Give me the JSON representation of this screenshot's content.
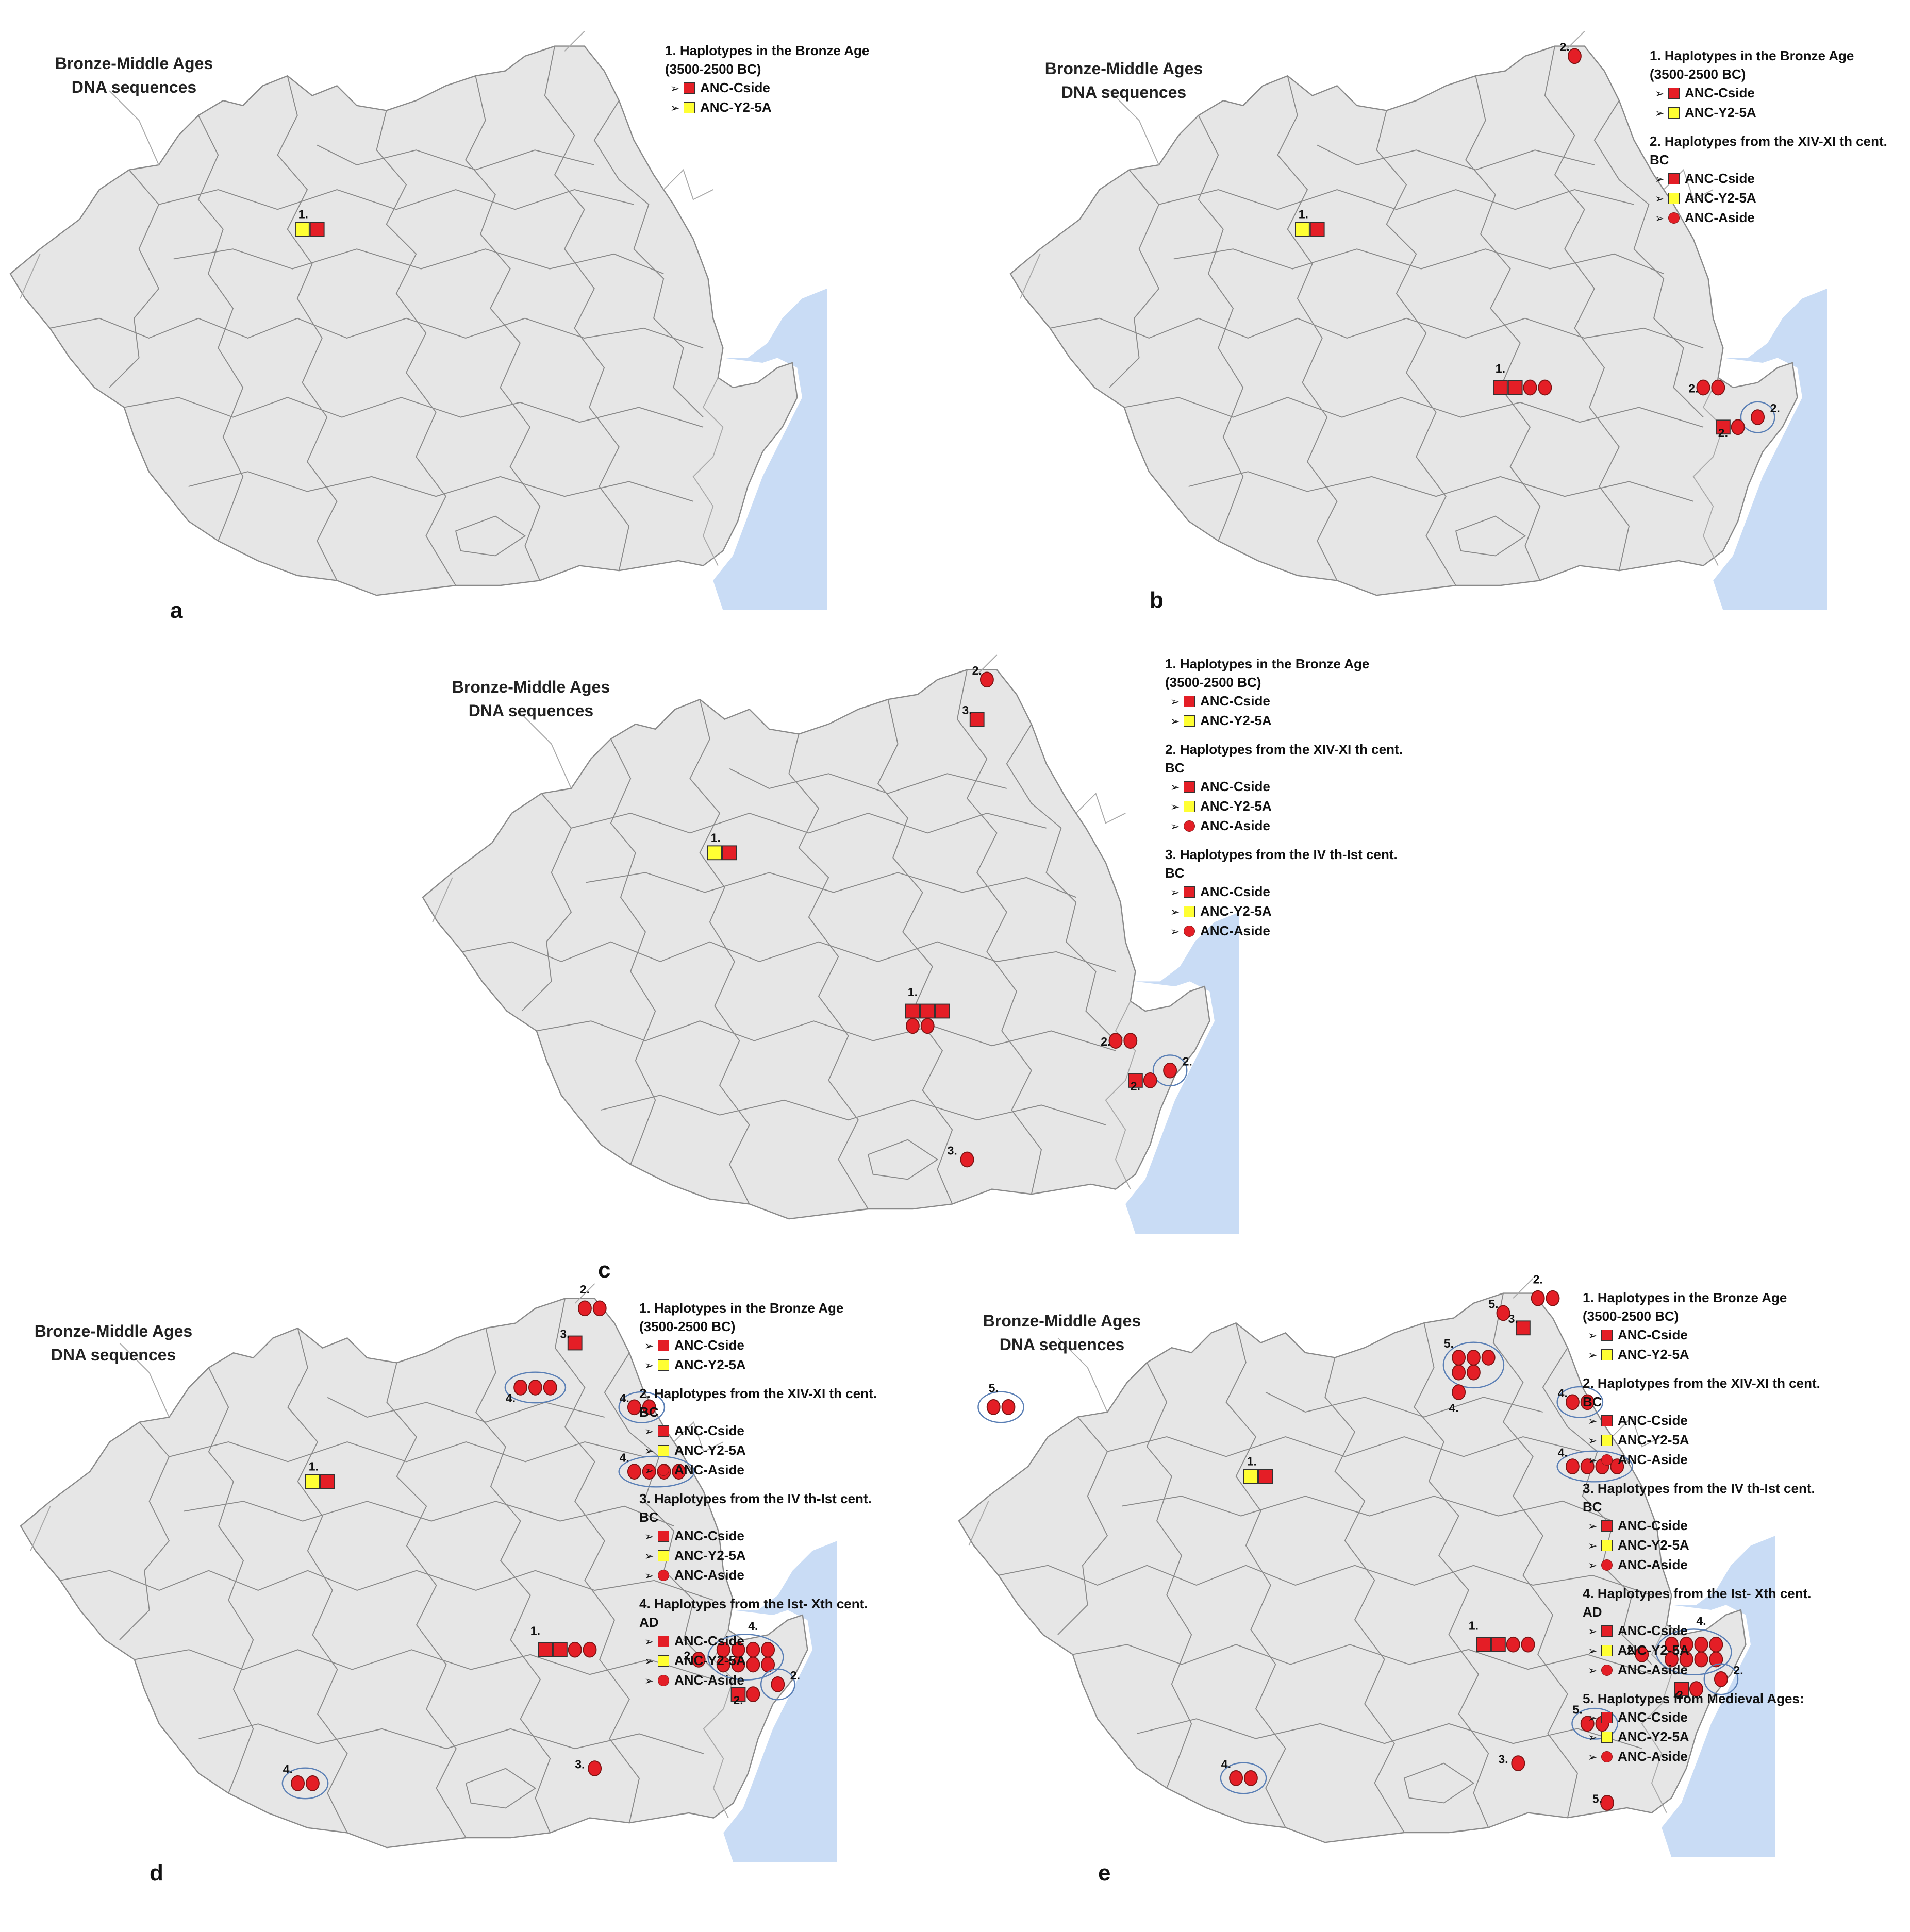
{
  "figure": {
    "colors": {
      "land": "#e6e6e6",
      "border": "#8a8a8a",
      "sea": "#c9dcf5",
      "csideSquare": "#e41e26",
      "y2Square": "#ffff33",
      "asideCircle": "#e41e26",
      "groupEllipse": "#5a7fb5"
    },
    "legendLabels": {
      "s1": "1. Haplotypes in the Bronze Age (3500-2500 BC)",
      "s2": "2. Haplotypes from the XIV-XI th cent. BC",
      "s3": "3. Haplotypes from the IV th-Ist cent. BC",
      "s4": "4. Haplotypes from the Ist- Xth cent. AD",
      "s5": "5. Haplotypes from Medieval Ages:",
      "cside": "ANC-Cside",
      "y2": "ANC-Y2-5A",
      "aside": "ANC-Aside"
    },
    "panels": [
      {
        "letter": "a",
        "title": "Bronze-Middle Ages DNA sequences",
        "legend": [
          {
            "heading": "1. Haplotypes in the Bronze Age (3500-2500 BC)",
            "items": [
              {
                "shape": "square",
                "color": "#e41e26",
                "label": "ANC-Cside"
              },
              {
                "shape": "square",
                "color": "#ffff33",
                "label": "ANC-Y2-5A"
              }
            ]
          }
        ],
        "sites": [
          {
            "label": "1."
          }
        ]
      },
      {
        "letter": "b",
        "title": "Bronze-Middle Ages DNA sequences",
        "legend": [
          {
            "heading": "1. Haplotypes in the Bronze Age (3500-2500 BC)",
            "items": [
              {
                "shape": "square",
                "color": "#e41e26",
                "label": "ANC-Cside"
              },
              {
                "shape": "square",
                "color": "#ffff33",
                "label": "ANC-Y2-5A"
              }
            ]
          },
          {
            "heading": "2. Haplotypes from the XIV-XI th cent. BC",
            "items": [
              {
                "shape": "square",
                "color": "#e41e26",
                "label": "ANC-Cside"
              },
              {
                "shape": "square",
                "color": "#ffff33",
                "label": "ANC-Y2-5A"
              },
              {
                "shape": "circle",
                "color": "#e41e26",
                "label": "ANC-Aside"
              }
            ]
          }
        ],
        "sites": [
          {
            "label": "1."
          },
          {
            "label": "1."
          },
          {
            "label": "2."
          },
          {
            "label": "2."
          },
          {
            "label": "2."
          },
          {
            "label": "2."
          }
        ]
      },
      {
        "letter": "c",
        "title": "Bronze-Middle Ages DNA sequences",
        "legend": [
          {
            "heading": "1. Haplotypes in the Bronze Age (3500-2500 BC)",
            "items": [
              {
                "shape": "square",
                "color": "#e41e26",
                "label": "ANC-Cside"
              },
              {
                "shape": "square",
                "color": "#ffff33",
                "label": "ANC-Y2-5A"
              }
            ]
          },
          {
            "heading": "2. Haplotypes from the XIV-XI th cent. BC",
            "items": [
              {
                "shape": "square",
                "color": "#e41e26",
                "label": "ANC-Cside"
              },
              {
                "shape": "square",
                "color": "#ffff33",
                "label": "ANC-Y2-5A"
              },
              {
                "shape": "circle",
                "color": "#e41e26",
                "label": "ANC-Aside"
              }
            ]
          },
          {
            "heading": "3. Haplotypes from the IV th-Ist cent. BC",
            "items": [
              {
                "shape": "square",
                "color": "#e41e26",
                "label": "ANC-Cside"
              },
              {
                "shape": "square",
                "color": "#ffff33",
                "label": "ANC-Y2-5A"
              },
              {
                "shape": "circle",
                "color": "#e41e26",
                "label": "ANC-Aside"
              }
            ]
          }
        ],
        "sites": [
          {
            "label": "1."
          },
          {
            "label": "1."
          },
          {
            "label": "2."
          },
          {
            "label": "2."
          },
          {
            "label": "2."
          },
          {
            "label": "2."
          },
          {
            "label": "3."
          },
          {
            "label": "3."
          }
        ]
      },
      {
        "letter": "d",
        "title": "Bronze-Middle Ages DNA sequences",
        "legend": [
          {
            "heading": "1. Haplotypes in the Bronze Age (3500-2500 BC)",
            "items": [
              {
                "shape": "square",
                "color": "#e41e26",
                "label": "ANC-Cside"
              },
              {
                "shape": "square",
                "color": "#ffff33",
                "label": "ANC-Y2-5A"
              }
            ]
          },
          {
            "heading": "2. Haplotypes from the XIV-XI th cent. BC",
            "items": [
              {
                "shape": "square",
                "color": "#e41e26",
                "label": "ANC-Cside"
              },
              {
                "shape": "square",
                "color": "#ffff33",
                "label": "ANC-Y2-5A"
              },
              {
                "shape": "circle",
                "color": "#e41e26",
                "label": "ANC-Aside"
              }
            ]
          },
          {
            "heading": "3. Haplotypes from the IV th-Ist cent. BC",
            "items": [
              {
                "shape": "square",
                "color": "#e41e26",
                "label": "ANC-Cside"
              },
              {
                "shape": "square",
                "color": "#ffff33",
                "label": "ANC-Y2-5A"
              },
              {
                "shape": "circle",
                "color": "#e41e26",
                "label": "ANC-Aside"
              }
            ]
          },
          {
            "heading": "4. Haplotypes from the Ist- Xth cent. AD",
            "items": [
              {
                "shape": "square",
                "color": "#e41e26",
                "label": "ANC-Cside"
              },
              {
                "shape": "square",
                "color": "#ffff33",
                "label": "ANC-Y2-5A"
              },
              {
                "shape": "circle",
                "color": "#e41e26",
                "label": "ANC-Aside"
              }
            ]
          }
        ],
        "sites": [
          {
            "label": "1."
          },
          {
            "label": "1."
          },
          {
            "label": "2."
          },
          {
            "label": "2."
          },
          {
            "label": "2."
          },
          {
            "label": "2."
          },
          {
            "label": "3."
          },
          {
            "label": "3."
          },
          {
            "label": "4."
          },
          {
            "label": "4."
          },
          {
            "label": "4."
          },
          {
            "label": "4."
          },
          {
            "label": "4."
          }
        ]
      },
      {
        "letter": "e",
        "title": "Bronze-Middle Ages DNA sequences",
        "legend": [
          {
            "heading": "1. Haplotypes in the Bronze Age (3500-2500 BC)",
            "items": [
              {
                "shape": "square",
                "color": "#e41e26",
                "label": "ANC-Cside"
              },
              {
                "shape": "square",
                "color": "#ffff33",
                "label": "ANC-Y2-5A"
              }
            ]
          },
          {
            "heading": "2. Haplotypes from the XIV-XI th cent. BC",
            "items": [
              {
                "shape": "square",
                "color": "#e41e26",
                "label": "ANC-Cside"
              },
              {
                "shape": "square",
                "color": "#ffff33",
                "label": "ANC-Y2-5A"
              },
              {
                "shape": "circle",
                "color": "#e41e26",
                "label": "ANC-Aside"
              }
            ]
          },
          {
            "heading": "3. Haplotypes from the IV th-Ist cent. BC",
            "items": [
              {
                "shape": "square",
                "color": "#e41e26",
                "label": "ANC-Cside"
              },
              {
                "shape": "square",
                "color": "#ffff33",
                "label": "ANC-Y2-5A"
              },
              {
                "shape": "circle",
                "color": "#e41e26",
                "label": "ANC-Aside"
              }
            ]
          },
          {
            "heading": "4. Haplotypes from the Ist- Xth cent. AD",
            "items": [
              {
                "shape": "square",
                "color": "#e41e26",
                "label": "ANC-Cside"
              },
              {
                "shape": "square",
                "color": "#ffff33",
                "label": "ANC-Y2-5A"
              },
              {
                "shape": "circle",
                "color": "#e41e26",
                "label": "ANC-Aside"
              }
            ]
          },
          {
            "heading": "5. Haplotypes from Medieval Ages:",
            "items": [
              {
                "shape": "square",
                "color": "#e41e26",
                "label": "ANC-Cside"
              },
              {
                "shape": "square",
                "color": "#ffff33",
                "label": "ANC-Y2-5A"
              },
              {
                "shape": "circle",
                "color": "#e41e26",
                "label": "ANC-Aside"
              }
            ]
          }
        ],
        "sites": [
          {
            "label": "1."
          },
          {
            "label": "1."
          },
          {
            "label": "2."
          },
          {
            "label": "2."
          },
          {
            "label": "2."
          },
          {
            "label": "2."
          },
          {
            "label": "3."
          },
          {
            "label": "3."
          },
          {
            "label": "4."
          },
          {
            "label": "4."
          },
          {
            "label": "4."
          },
          {
            "label": "4."
          },
          {
            "label": "4."
          },
          {
            "label": "5."
          },
          {
            "label": "5."
          },
          {
            "label": "5."
          },
          {
            "label": "5."
          },
          {
            "label": "5."
          }
        ]
      }
    ]
  }
}
